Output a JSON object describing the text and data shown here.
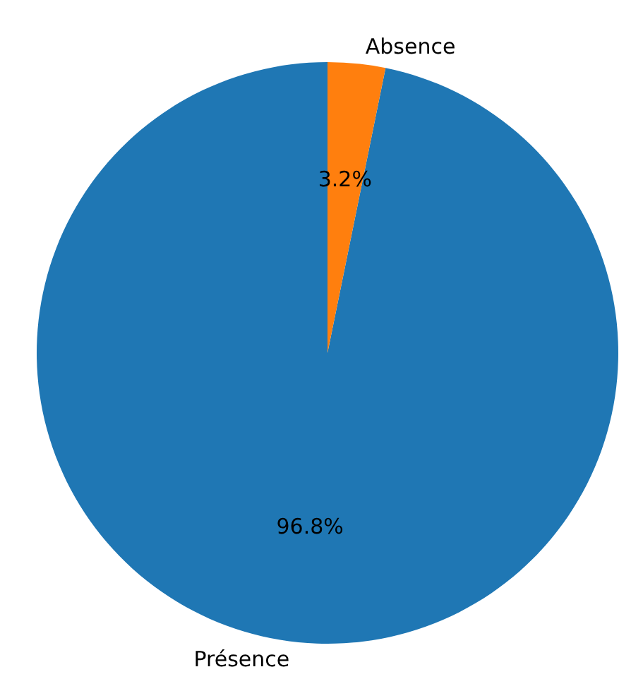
{
  "chart_data": {
    "type": "pie",
    "categories": [
      "Présence",
      "Absence"
    ],
    "values": [
      96.8,
      3.2
    ],
    "colors": [
      "#1f77b4",
      "#ff7f0e"
    ],
    "value_labels": [
      "96.8%",
      "3.2%"
    ],
    "legend": false
  }
}
